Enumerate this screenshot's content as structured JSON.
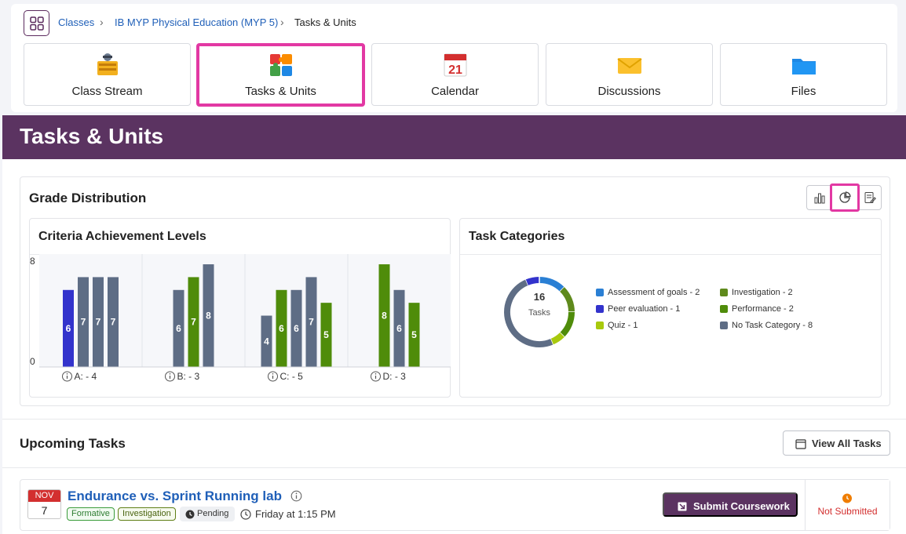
{
  "breadcrumb": {
    "items": [
      "Classes",
      "IB MYP Physical Education (MYP 5)",
      "Tasks & Units"
    ]
  },
  "tiles": [
    {
      "label": "Class Stream",
      "icon": "class-stream-icon",
      "active": false
    },
    {
      "label": "Tasks & Units",
      "icon": "puzzle-icon",
      "active": true
    },
    {
      "label": "Calendar",
      "icon": "calendar-icon",
      "active": false,
      "icon_text": "21"
    },
    {
      "label": "Discussions",
      "icon": "envelope-icon",
      "active": false
    },
    {
      "label": "Files",
      "icon": "folder-icon",
      "active": false
    }
  ],
  "page_title": "Tasks & Units",
  "grade_distribution": {
    "title": "Grade Distribution",
    "view_toggle": [
      "bar-chart-icon",
      "pie-chart-icon",
      "report-icon"
    ],
    "selected_view": "pie-chart-icon"
  },
  "criteria_chart": {
    "title": "Criteria Achievement Levels",
    "chart_data": {
      "type": "bar",
      "ylim": [
        0,
        8
      ],
      "yticks": [
        "8",
        "0"
      ],
      "groups": [
        {
          "label": "A: - 4",
          "bars": [
            {
              "value": 6,
              "color": "#3333cc"
            },
            {
              "value": 7,
              "color": "#5e6d85"
            },
            {
              "value": 7,
              "color": "#5e6d85"
            },
            {
              "value": 7,
              "color": "#5e6d85"
            }
          ]
        },
        {
          "label": "B: - 3",
          "bars": [
            {
              "value": 6,
              "color": "#5e6d85"
            },
            {
              "value": 7,
              "color": "#4f8c0a"
            },
            {
              "value": 8,
              "color": "#5e6d85"
            }
          ]
        },
        {
          "label": "C: - 5",
          "bars": [
            {
              "value": 4,
              "color": "#5e6d85"
            },
            {
              "value": 6,
              "color": "#4f8c0a"
            },
            {
              "value": 6,
              "color": "#5e6d85"
            },
            {
              "value": 7,
              "color": "#5e6d85"
            },
            {
              "value": 5,
              "color": "#4f8c0a"
            }
          ]
        },
        {
          "label": "D: - 3",
          "bars": [
            {
              "value": 8,
              "color": "#4f8c0a"
            },
            {
              "value": 6,
              "color": "#5e6d85"
            },
            {
              "value": 5,
              "color": "#4f8c0a"
            }
          ]
        }
      ]
    }
  },
  "categories_chart": {
    "title": "Task Categories",
    "center_value": "16",
    "center_label": "Tasks",
    "chart_data": {
      "type": "pie",
      "slices": [
        {
          "name": "Assessment of goals - 2",
          "value": 2,
          "color": "#2a7fd4"
        },
        {
          "name": "Peer evaluation - 1",
          "value": 1,
          "color": "#3333cc"
        },
        {
          "name": "Quiz - 1",
          "value": 1,
          "color": "#a8c90d"
        },
        {
          "name": "Investigation - 2",
          "value": 2,
          "color": "#5f8a1c"
        },
        {
          "name": "Performance - 2",
          "value": 2,
          "color": "#4f8c0a"
        },
        {
          "name": "No Task Category - 8",
          "value": 8,
          "color": "#5e6d85"
        }
      ],
      "ring_order": [
        "Assessment of goals - 2",
        "Investigation - 2",
        "Performance - 2",
        "Quiz - 1",
        "No Task Category - 8",
        "Peer evaluation - 1"
      ]
    }
  },
  "upcoming": {
    "title": "Upcoming Tasks",
    "view_all_label": "View All Tasks",
    "task": {
      "month": "NOV",
      "day": "7",
      "title": "Endurance vs. Sprint Running lab",
      "tags": [
        "Formative",
        "Investigation"
      ],
      "status": "Pending",
      "due": "Friday at 1:15 PM",
      "submit_label": "Submit Coursework",
      "submission_status": "Not Submitted"
    }
  },
  "colors": {
    "brand_purple": "#5b3361",
    "highlight_pink": "#e238a3",
    "link_blue": "#1f5fb8"
  }
}
